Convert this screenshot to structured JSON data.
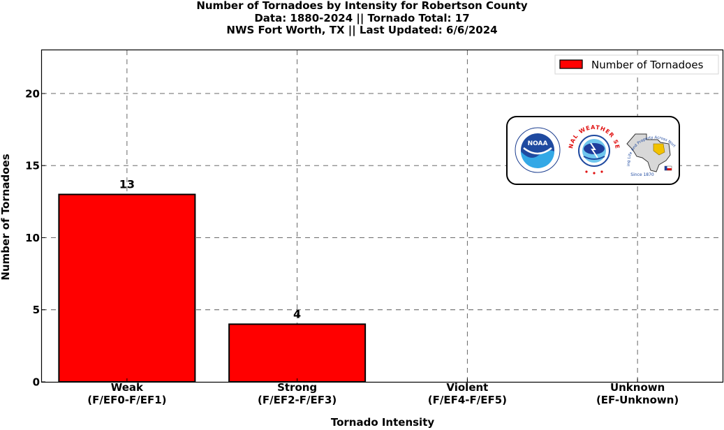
{
  "title_lines": [
    "Number of Tornadoes by Intensity for Robertson County",
    "Data: 1880-2024 || Tornado Total: 17",
    "NWS Fort Worth, TX || Last Updated: 6/6/2024"
  ],
  "logos": {
    "noaa": "NOAA",
    "nws": "NATIONAL WEATHER SERVICE",
    "fwd": "Protecting Life And Property Across North Texas",
    "fwd_since": "Since 1870"
  },
  "colors": {
    "bar": "#ff0000",
    "bar_edge": "#000000",
    "grid": "#555555"
  },
  "chart_data": {
    "type": "bar",
    "categories": [
      [
        "Weak",
        "(F/EF0-F/EF1)"
      ],
      [
        "Strong",
        "(F/EF2-F/EF3)"
      ],
      [
        "Violent",
        "(F/EF4-F/EF5)"
      ],
      [
        "Unknown",
        "(EF-Unknown)"
      ]
    ],
    "series": [
      {
        "name": "Number of Tornadoes",
        "values": [
          13,
          4,
          0,
          0
        ]
      }
    ],
    "data_labels": [
      "13",
      "4",
      "",
      ""
    ],
    "xlabel": "Tornado Intensity",
    "ylabel": "Number of Tornadoes",
    "ylim": [
      0,
      23
    ],
    "yticks": [
      0,
      5,
      10,
      15,
      20
    ],
    "grid": true,
    "grid_style": "dashed",
    "legend_position": "top-right"
  }
}
